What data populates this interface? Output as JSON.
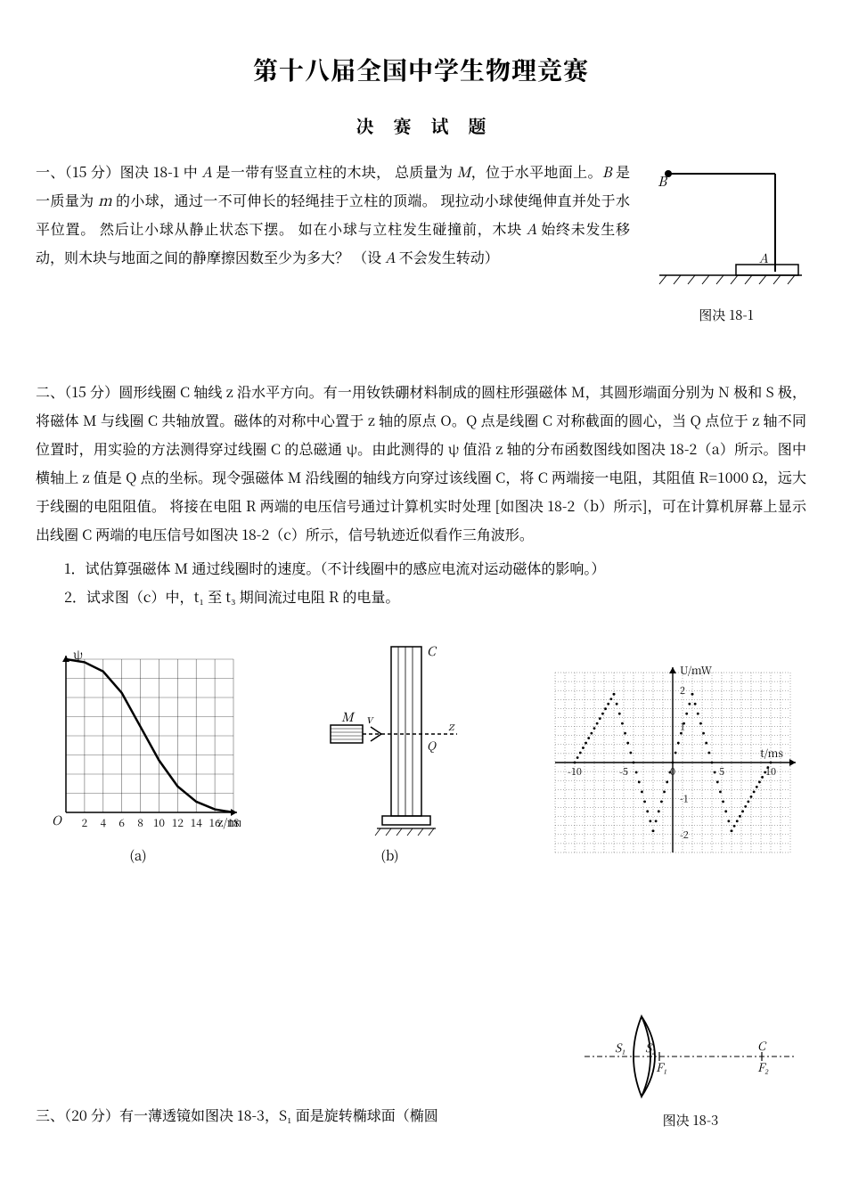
{
  "title": "第十八届全国中学生物理竞赛",
  "subtitle": "决赛试题",
  "q1": {
    "points_prefix": "一、（15 分）",
    "text_parts": [
      "图决 18-1 中 ",
      " 是一带有竖直立柱的木块， 总质量为 ",
      "，位于水平地面上。",
      " 是一质量为 ",
      " 的小球，通过一不可伸长的轻绳挂于立柱的顶端。 现拉动小球使绳伸直并处于水平位置。 然后让小球从静止状态下摆。 如在小球与立柱发生碰撞前，木块 ",
      " 始终未发生移动，则木块与地面之间的静摩擦因数至少为多大？ （设 ",
      " 不会发生转动）"
    ],
    "vars": {
      "A": "A",
      "B": "B",
      "M": "M",
      "m": "m"
    },
    "fig": {
      "caption": "图决 18-1",
      "B_label": "B",
      "A_label": "A",
      "line_color": "#000",
      "hatch_color": "#000",
      "background": "#ffffff"
    }
  },
  "q2": {
    "points_prefix": "二、（15 分）",
    "body_plain": "圆形线圈 C 轴线 z 沿水平方向。有一用钕铁硼材料制成的圆柱形强磁体 M，其圆形端面分别为 N 极和 S 极，将磁体 M 与线圈 C 共轴放置。磁体的对称中心置于 z 轴的原点 O。Q 点是线圈 C 对称截面的圆心，当 Q 点位于 z 轴不同位置时，用实验的方法测得穿过线圈 C 的总磁通 ψ。由此测得的 ψ 值沿 z 轴的分布函数图线如图决 18-2（a）所示。图中横轴上 z 值是 Q 点的坐标。现令强磁体 M 沿线圈的轴线方向穿过该线圈 C，将 C 两端接一电阻，其阻值 R=1000 Ω，远大于线圈的电阻阻值。 将接在电阻 R 两端的电压信号通过计算机实时处理 [如图决 18-2（b）所示]，可在计算机屏幕上显示出线圈 C 两端的电压信号如图决 18-2（c）所示，信号轨迹近似看作三角波形。",
    "sub1": "1．试估算强磁体 M 通过线圈时的速度。（不计线圈中的感应电流对运动磁体的影响。）",
    "sub2": "2．试求图（c）中，t₁ 至 t₃ 期间流过电阻 R 的电量。",
    "chart_a": {
      "type": "line",
      "x_label": "z/mm",
      "y_label": "ψ",
      "x_ticks": [
        2,
        4,
        6,
        8,
        10,
        12,
        14,
        16,
        18
      ],
      "x_min": 0,
      "x_max": 18,
      "y_min": 0,
      "y_max": 1,
      "points": [
        [
          0,
          1.0
        ],
        [
          2,
          0.98
        ],
        [
          4,
          0.92
        ],
        [
          6,
          0.78
        ],
        [
          8,
          0.56
        ],
        [
          10,
          0.34
        ],
        [
          12,
          0.17
        ],
        [
          14,
          0.07
        ],
        [
          16,
          0.02
        ],
        [
          18,
          0.0
        ]
      ],
      "line_color": "#000",
      "line_width": 2.5,
      "grid_color": "#000",
      "grid_width": 0.6,
      "grid_nx": 9,
      "grid_ny": 8,
      "label_fontsize": 14,
      "sub_label": "(a)"
    },
    "chart_b": {
      "type": "schematic",
      "labels": {
        "C": "C",
        "M": "M",
        "Q": "Q",
        "z": "z",
        "v": "v"
      },
      "line_color": "#000",
      "sub_label": "(b)"
    },
    "chart_c": {
      "type": "line",
      "y_label": "U/mW",
      "x_label": "t/ms",
      "x_ticks": [
        -10,
        -5,
        0,
        5,
        10
      ],
      "y_ticks": [
        -2,
        -1,
        0,
        1,
        2
      ],
      "x_min": -12,
      "x_max": 12,
      "y_min": -2.5,
      "y_max": 2.5,
      "points": [
        [
          -10,
          0
        ],
        [
          -6,
          1.9
        ],
        [
          -2,
          -1.9
        ],
        [
          2,
          1.9
        ],
        [
          6,
          -1.9
        ],
        [
          10,
          0
        ]
      ],
      "line_color": "#000",
      "marker_size": 3,
      "grid_color": "#000",
      "grid_width": 0.45,
      "grid_nx": 24,
      "grid_ny": 20,
      "label_fontsize": 12
    }
  },
  "q3": {
    "points_prefix": "三、（20 分）",
    "text": "有一薄透镜如图决 18-3，S₁ 面是旋转椭球面（椭圆",
    "fig": {
      "caption": "图决 18-3",
      "labels": {
        "S1": "S₁",
        "S2": "S₂",
        "F1": "F₁",
        "F2": "F₂",
        "C": "C"
      },
      "line_color": "#000"
    }
  },
  "colors": {
    "ink": "#000000",
    "bg": "#ffffff"
  }
}
